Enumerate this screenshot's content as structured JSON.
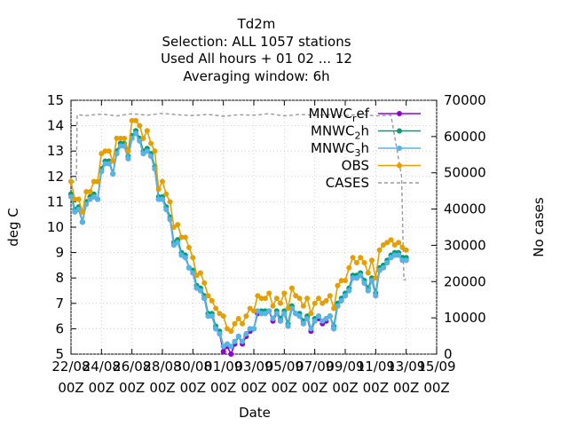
{
  "title_lines": [
    "Td2m",
    "Selection: ALL    1057 stations",
    "Used  All hours  + 01 02 ... 12",
    "Averaging window:  6h"
  ],
  "colors": {
    "MNWC_ref": "#9400d3",
    "MNWC_2h": "#009e73",
    "MNWC_3h": "#56b4e9",
    "OBS": "#e69f00",
    "CASES": "#999999"
  },
  "chart_data": {
    "type": "line",
    "xlabel": "Date",
    "ylabel": "deg C",
    "y2label": "No cases",
    "xlim": [
      0,
      24
    ],
    "ylim": [
      5,
      15
    ],
    "y2lim": [
      0,
      70000
    ],
    "x_ticks": [
      {
        "x": 0,
        "line1": "22/08",
        "line2": "00Z"
      },
      {
        "x": 2,
        "line1": "24/08",
        "line2": "00Z"
      },
      {
        "x": 4,
        "line1": "26/08",
        "line2": "00Z"
      },
      {
        "x": 6,
        "line1": "28/08",
        "line2": "00Z"
      },
      {
        "x": 8,
        "line1": "30/08",
        "line2": "00Z"
      },
      {
        "x": 10,
        "line1": "01/09",
        "line2": "00Z"
      },
      {
        "x": 12,
        "line1": "03/09",
        "line2": "00Z"
      },
      {
        "x": 14,
        "line1": "05/09",
        "line2": "00Z"
      },
      {
        "x": 16,
        "line1": "07/09",
        "line2": "00Z"
      },
      {
        "x": 18,
        "line1": "09/09",
        "line2": "00Z"
      },
      {
        "x": 20,
        "line1": "11/09",
        "line2": "00Z"
      },
      {
        "x": 22,
        "line1": "13/09",
        "line2": "00Z"
      },
      {
        "x": 24,
        "line1": "15/09",
        "line2": "00Z"
      }
    ],
    "y_ticks": [
      5,
      6,
      7,
      8,
      9,
      10,
      11,
      12,
      13,
      14,
      15
    ],
    "y2_ticks": [
      0,
      10000,
      20000,
      30000,
      40000,
      50000,
      60000,
      70000
    ],
    "legend_position": "top-right",
    "x": [
      0.0,
      0.25,
      0.5,
      0.75,
      1.0,
      1.25,
      1.5,
      1.75,
      2.0,
      2.25,
      2.5,
      2.75,
      3.0,
      3.25,
      3.5,
      3.75,
      4.0,
      4.25,
      4.5,
      4.75,
      5.0,
      5.25,
      5.5,
      5.75,
      6.0,
      6.25,
      6.5,
      6.75,
      7.0,
      7.25,
      7.5,
      7.75,
      8.0,
      8.25,
      8.5,
      8.75,
      9.0,
      9.25,
      9.5,
      9.75,
      10.0,
      10.25,
      10.5,
      10.75,
      11.0,
      11.25,
      11.5,
      11.75,
      12.0,
      12.25,
      12.5,
      12.75,
      13.0,
      13.25,
      13.5,
      13.75,
      14.0,
      14.25,
      14.5,
      14.75,
      15.0,
      15.25,
      15.5,
      15.75,
      16.0,
      16.25,
      16.5,
      16.75,
      17.0,
      17.25,
      17.5,
      17.75,
      18.0,
      18.25,
      18.5,
      18.75,
      19.0,
      19.25,
      19.5,
      19.75,
      20.0,
      20.25,
      20.5,
      20.75,
      21.0,
      21.25,
      21.5,
      21.75,
      22.0
    ],
    "series": [
      {
        "name": "MNWC_ref",
        "legend": "MNWC_ref",
        "axis": "y",
        "values": [
          11.3,
          10.6,
          10.7,
          10.2,
          11.0,
          11.1,
          11.2,
          11.1,
          12.2,
          12.6,
          12.6,
          12.1,
          12.9,
          13.3,
          13.2,
          12.7,
          13.6,
          13.7,
          13.4,
          12.9,
          13.0,
          12.8,
          12.3,
          11.1,
          11.1,
          10.7,
          10.3,
          9.3,
          9.5,
          8.9,
          8.8,
          8.4,
          8.2,
          7.6,
          7.5,
          7.2,
          6.5,
          6.5,
          6.0,
          5.8,
          5.1,
          5.3,
          5.0,
          5.4,
          5.7,
          5.4,
          5.7,
          5.9,
          6.0,
          6.6,
          6.6,
          6.6,
          6.7,
          6.3,
          6.6,
          6.3,
          6.6,
          6.1,
          6.8,
          6.6,
          6.5,
          6.2,
          6.4,
          5.9,
          6.3,
          6.4,
          6.2,
          6.3,
          6.5,
          6.0,
          6.9,
          7.1,
          7.3,
          7.5,
          8.0,
          8.0,
          8.1,
          7.8,
          7.5,
          7.9,
          7.3,
          8.3,
          8.4,
          8.6,
          8.8,
          8.9,
          8.9,
          8.7,
          8.7
        ]
      },
      {
        "name": "MNWC_2h",
        "legend": "MNWC_2h",
        "axis": "y",
        "values": [
          11.3,
          10.7,
          10.8,
          10.2,
          11.0,
          11.2,
          11.3,
          11.1,
          12.3,
          12.6,
          12.6,
          12.1,
          13.0,
          13.3,
          13.3,
          12.8,
          13.6,
          13.8,
          13.5,
          13.0,
          13.1,
          12.9,
          12.4,
          11.2,
          11.2,
          10.8,
          10.4,
          9.4,
          9.5,
          9.0,
          8.9,
          8.4,
          8.3,
          7.7,
          7.6,
          7.3,
          6.6,
          6.6,
          6.1,
          5.9,
          5.3,
          5.4,
          5.3,
          5.5,
          5.7,
          5.5,
          5.8,
          6.0,
          6.0,
          6.7,
          6.7,
          6.7,
          6.7,
          6.4,
          6.7,
          6.4,
          6.7,
          6.2,
          6.9,
          6.6,
          6.6,
          6.3,
          6.5,
          6.0,
          6.4,
          6.5,
          6.3,
          6.4,
          6.5,
          6.1,
          7.0,
          7.2,
          7.4,
          7.6,
          8.1,
          8.1,
          8.2,
          7.9,
          7.6,
          8.0,
          7.4,
          8.4,
          8.5,
          8.7,
          8.9,
          9.0,
          9.0,
          8.8,
          8.8
        ]
      },
      {
        "name": "MNWC_3h",
        "legend": "MNWC_3h",
        "axis": "y",
        "values": [
          11.2,
          10.6,
          10.7,
          10.2,
          10.9,
          11.1,
          11.2,
          11.1,
          12.2,
          12.5,
          12.5,
          12.1,
          12.9,
          13.2,
          13.2,
          12.7,
          13.5,
          13.7,
          13.4,
          12.9,
          13.0,
          12.8,
          12.3,
          11.1,
          11.1,
          10.7,
          10.3,
          9.3,
          9.4,
          8.9,
          8.8,
          8.4,
          8.2,
          7.6,
          7.5,
          7.2,
          6.5,
          6.5,
          6.0,
          5.8,
          5.3,
          5.4,
          5.3,
          5.5,
          5.7,
          5.5,
          5.8,
          6.0,
          6.0,
          6.7,
          6.6,
          6.6,
          6.7,
          6.4,
          6.6,
          6.3,
          6.6,
          6.1,
          6.8,
          6.6,
          6.5,
          6.2,
          6.4,
          6.0,
          6.3,
          6.5,
          6.3,
          6.4,
          6.5,
          6.0,
          6.9,
          7.1,
          7.3,
          7.5,
          8.0,
          8.0,
          8.1,
          7.8,
          7.5,
          7.9,
          7.3,
          8.3,
          8.4,
          8.6,
          8.8,
          8.9,
          8.9,
          8.7,
          8.7
        ]
      },
      {
        "name": "OBS",
        "legend": "OBS",
        "axis": "y",
        "values": [
          11.8,
          11.1,
          11.1,
          10.6,
          11.4,
          11.4,
          11.8,
          11.8,
          12.9,
          13.0,
          13.0,
          12.6,
          13.5,
          13.5,
          13.5,
          13.0,
          14.2,
          14.2,
          14.0,
          13.5,
          13.8,
          13.3,
          13.0,
          11.5,
          11.8,
          11.3,
          11.0,
          10.0,
          10.1,
          9.6,
          9.6,
          9.2,
          8.8,
          8.1,
          8.2,
          7.8,
          7.3,
          7.1,
          6.8,
          6.6,
          6.5,
          6.0,
          5.9,
          6.2,
          6.4,
          6.2,
          6.5,
          6.8,
          6.7,
          7.3,
          7.2,
          7.2,
          7.4,
          6.9,
          7.2,
          7.0,
          7.4,
          6.8,
          7.6,
          7.3,
          7.2,
          6.9,
          7.2,
          6.6,
          7.0,
          7.2,
          7.0,
          7.1,
          7.3,
          6.8,
          7.7,
          7.9,
          7.9,
          8.4,
          8.8,
          8.6,
          8.8,
          8.6,
          8.2,
          8.7,
          8.0,
          9.1,
          9.3,
          9.4,
          9.5,
          9.3,
          9.4,
          9.2,
          9.1
        ]
      }
    ],
    "cases": {
      "name": "CASES",
      "legend": "CASES",
      "axis": "y2",
      "x": [
        0.0,
        0.35,
        0.4,
        1,
        2,
        3,
        4,
        5,
        6,
        7,
        8,
        9,
        10,
        11,
        12,
        13,
        14,
        15,
        16,
        17,
        18,
        19,
        20,
        21,
        21.7,
        21.85,
        22.0
      ],
      "values": [
        47500,
        47500,
        66000,
        65800,
        66200,
        65700,
        66300,
        65900,
        66400,
        66000,
        65800,
        66100,
        65600,
        66000,
        65900,
        66300,
        65700,
        66100,
        65900,
        66000,
        65800,
        66100,
        65700,
        65900,
        49000,
        20500,
        20500
      ]
    }
  }
}
